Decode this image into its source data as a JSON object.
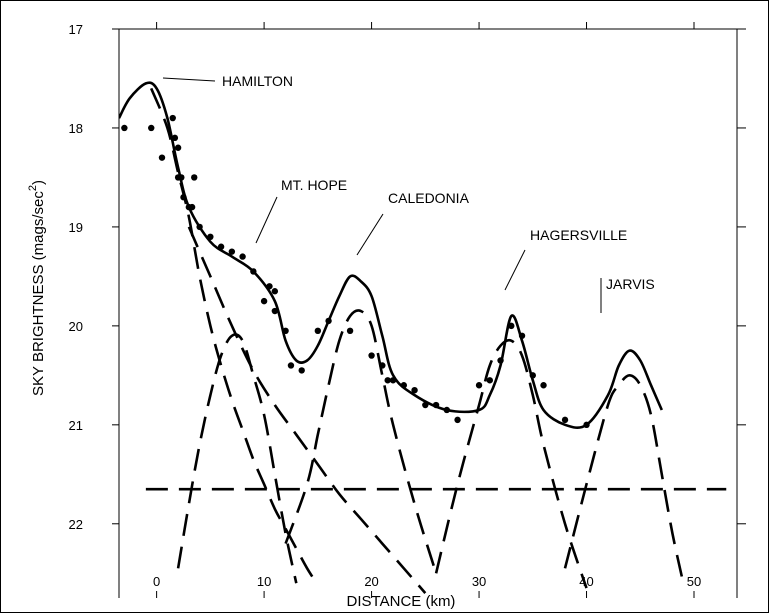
{
  "chart_data": {
    "type": "line",
    "xlabel": "DISTANCE (km)",
    "ylabel": "SKY BRIGHTNESS  (mags/sec",
    "ylabel_superscript": "2",
    "ylabel_close": ")",
    "xlim": [
      -3.5,
      54
    ],
    "ylim": [
      22.75,
      17
    ],
    "y_inverted": true,
    "grid": false,
    "x_ticks": [
      0,
      10,
      20,
      30,
      40,
      50
    ],
    "x_tick_labels": [
      "0",
      "10",
      "20",
      "30",
      "40",
      "50"
    ],
    "y_ticks": [
      17,
      18,
      19,
      20,
      21,
      22
    ],
    "y_tick_labels": [
      "17",
      "18",
      "19",
      "20",
      "21",
      "22"
    ],
    "annotations": [
      {
        "text": "HAMILTON",
        "x": -0.5,
        "y": 17.55
      },
      {
        "text": "MT. HOPE",
        "x": 10,
        "y": 19.45
      },
      {
        "text": "CALEDONIA",
        "x": 18.5,
        "y": 19.55
      },
      {
        "text": "HAGERSVILLE",
        "x": 33,
        "y": 19.9
      },
      {
        "text": "JARVIS",
        "x": 43.5,
        "y": 20.2
      }
    ],
    "series": [
      {
        "style": "dots",
        "x": [
          -3,
          -0.5,
          0.5,
          1.5,
          1.7,
          2,
          2,
          2.3,
          2.5,
          3,
          3.3,
          3.5,
          4,
          5,
          6,
          7,
          8,
          9,
          10,
          10.5,
          11,
          11,
          12,
          12.5,
          13.5,
          15,
          16,
          18,
          20,
          21,
          21.5,
          22,
          23,
          24,
          25,
          26,
          27,
          28,
          30,
          31,
          32,
          33,
          34,
          35,
          36,
          38,
          40
        ],
        "y": [
          18.0,
          18.0,
          18.3,
          17.9,
          18.1,
          18.2,
          18.5,
          18.5,
          18.7,
          18.8,
          18.8,
          18.5,
          19.0,
          19.1,
          19.2,
          19.25,
          19.3,
          19.45,
          19.75,
          19.6,
          19.65,
          19.85,
          20.05,
          20.4,
          20.45,
          20.05,
          19.95,
          20.05,
          20.3,
          20.4,
          20.55,
          20.55,
          20.6,
          20.65,
          20.8,
          20.8,
          20.85,
          20.95,
          20.6,
          20.55,
          20.35,
          20.0,
          20.1,
          20.5,
          20.6,
          20.95,
          21.0
        ]
      },
      {
        "style": "solid",
        "x": [
          -3.5,
          -2.5,
          -1,
          0,
          1,
          2,
          3,
          5,
          7,
          9,
          11,
          12,
          13,
          14,
          15,
          16,
          17,
          18,
          19,
          20,
          21,
          22,
          24,
          27,
          30,
          31,
          32,
          33,
          34,
          35,
          36,
          38,
          40,
          42,
          43,
          44,
          45,
          46,
          47
        ],
        "y": [
          17.9,
          17.7,
          17.55,
          17.6,
          17.9,
          18.4,
          18.8,
          19.15,
          19.3,
          19.45,
          19.75,
          20.15,
          20.35,
          20.35,
          20.2,
          19.95,
          19.7,
          19.5,
          19.55,
          19.7,
          20.1,
          20.5,
          20.7,
          20.85,
          20.85,
          20.7,
          20.4,
          19.9,
          20.15,
          20.55,
          20.85,
          21.0,
          21.0,
          20.7,
          20.4,
          20.25,
          20.35,
          20.6,
          20.85
        ]
      },
      {
        "style": "dashed",
        "x": [
          -0.5,
          1,
          2,
          3,
          4,
          5,
          6,
          7,
          8,
          9,
          10,
          11,
          12,
          13,
          14,
          15
        ],
        "y": [
          17.6,
          18.0,
          18.45,
          18.9,
          19.5,
          20.0,
          20.4,
          20.75,
          21.05,
          21.35,
          21.6,
          21.85,
          22.05,
          22.25,
          22.45,
          22.62
        ]
      },
      {
        "style": "dashed",
        "x": [
          3,
          5,
          7,
          9,
          11,
          13,
          15,
          17,
          19,
          21,
          23,
          25
        ],
        "y": [
          19.0,
          19.5,
          20.0,
          20.45,
          20.8,
          21.1,
          21.4,
          21.7,
          21.95,
          22.2,
          22.45,
          22.7
        ]
      },
      {
        "style": "dashed",
        "x": [
          2,
          3,
          4,
          5,
          6,
          7,
          8,
          9,
          10,
          11,
          12,
          13
        ],
        "y": [
          22.45,
          21.8,
          21.2,
          20.7,
          20.3,
          20.1,
          20.15,
          20.5,
          20.9,
          21.5,
          22.1,
          22.6
        ]
      },
      {
        "style": "dashed",
        "x": [
          12,
          14,
          15,
          16,
          17,
          18,
          19,
          20,
          21,
          22,
          24,
          26
        ],
        "y": [
          22.2,
          21.6,
          21.1,
          20.6,
          20.15,
          19.9,
          19.85,
          20.0,
          20.5,
          21.0,
          21.8,
          22.5
        ]
      },
      {
        "style": "dashed",
        "x": [
          26,
          28,
          30,
          31,
          32,
          33,
          34,
          35,
          36,
          38,
          40
        ],
        "y": [
          22.5,
          21.6,
          20.8,
          20.4,
          20.2,
          20.15,
          20.3,
          20.7,
          21.2,
          22.0,
          22.65
        ]
      },
      {
        "style": "dashed",
        "x": [
          38,
          40,
          42,
          43,
          44,
          45,
          46,
          47,
          48,
          49
        ],
        "y": [
          22.45,
          21.6,
          20.8,
          20.6,
          20.5,
          20.6,
          20.9,
          21.5,
          22.1,
          22.6
        ]
      },
      {
        "style": "dashed",
        "x": [
          -1,
          53
        ],
        "y": [
          21.65,
          21.65
        ]
      }
    ]
  }
}
